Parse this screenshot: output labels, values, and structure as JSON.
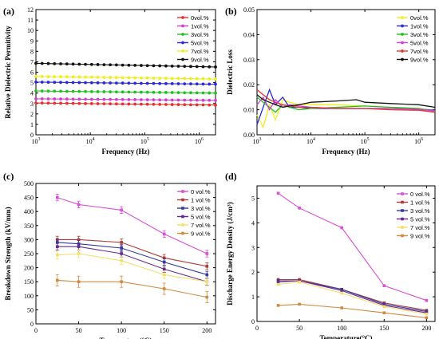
{
  "colors": {
    "c0": "#e83030",
    "c1": "#d33fd3",
    "c3": "#1fc21f",
    "c5": "#2a2ad8",
    "c7": "#f0ee20",
    "c9": "#111111",
    "cc0": "#d94fd9",
    "cc1": "#b03a3a",
    "cc3": "#2f3aa0",
    "cc5": "#6a2a8a",
    "cc7": "#f3e06a",
    "cc9": "#d08a40"
  },
  "chart_data": [
    {
      "panel": "(a)",
      "type": "line",
      "xscale": "log",
      "xlim": [
        1000,
        2000000
      ],
      "ylim": [
        0,
        12
      ],
      "xlabel": "Frequency (Hz)",
      "ylabel": "Relative Dielectric Permitivity",
      "xticks": [
        {
          "v": 1000,
          "b": "10",
          "e": "3"
        },
        {
          "v": 10000,
          "b": "10",
          "e": "4"
        },
        {
          "v": 100000,
          "b": "10",
          "e": "5"
        },
        {
          "v": 1000000,
          "b": "10",
          "e": "6"
        }
      ],
      "yticks": [
        0,
        1,
        2,
        3,
        4,
        5,
        6,
        7,
        8,
        9,
        10,
        11,
        12
      ],
      "legend_position": "top-right",
      "series": [
        {
          "name": "0vol.%",
          "color": "c0",
          "values": [
            3.05,
            2.85
          ]
        },
        {
          "name": "1vol.%",
          "color": "c1",
          "values": [
            3.45,
            3.3
          ]
        },
        {
          "name": "3vol.%",
          "color": "c3",
          "values": [
            4.2,
            4.0
          ]
        },
        {
          "name": "5vol.%",
          "color": "c5",
          "values": [
            5.05,
            4.85
          ]
        },
        {
          "name": "7vol.%",
          "color": "c7",
          "values": [
            5.6,
            5.35
          ]
        },
        {
          "name": "9vol.%",
          "color": "c9",
          "values": [
            6.85,
            6.5
          ]
        }
      ]
    },
    {
      "panel": "(b)",
      "type": "line",
      "xscale": "log",
      "xlim": [
        1000,
        2000000
      ],
      "ylim": [
        0,
        0.05
      ],
      "xlabel": "Frequency (Hz)",
      "ylabel": "Dielectric Loss",
      "xticks": [
        {
          "v": 1000,
          "b": "10",
          "e": "3"
        },
        {
          "v": 10000,
          "b": "10",
          "e": "4"
        },
        {
          "v": 100000,
          "b": "10",
          "e": "5"
        },
        {
          "v": 1000000,
          "b": "10",
          "e": "6"
        }
      ],
      "yticks": [
        "0.00",
        "0.01",
        "0.02",
        "0.03",
        "0.04",
        "0.05"
      ],
      "legend_position": "top-right",
      "series": [
        {
          "name": "0vol.%",
          "color": "c7",
          "x": [
            1000,
            1300,
            1700,
            2200,
            3000,
            4000,
            6000,
            10000,
            30000,
            100000,
            300000,
            1000000,
            2000000
          ],
          "values": [
            0.008,
            0.003,
            0.012,
            0.006,
            0.014,
            0.013,
            0.012,
            0.012,
            0.012,
            0.0115,
            0.011,
            0.0105,
            0.0095
          ]
        },
        {
          "name": "1vol.%",
          "color": "c5",
          "x": [
            1000,
            1300,
            1700,
            2200,
            3000,
            4000,
            6000,
            10000,
            30000,
            100000,
            300000,
            1000000,
            2000000
          ],
          "values": [
            0.004,
            0.011,
            0.018,
            0.012,
            0.015,
            0.011,
            0.011,
            0.0105,
            0.0105,
            0.0105,
            0.0105,
            0.0103,
            0.0098
          ]
        },
        {
          "name": "3vol.%",
          "color": "c3",
          "x": [
            1000,
            1300,
            1700,
            2200,
            3000,
            4000,
            6000,
            10000,
            30000,
            100000,
            300000,
            1000000,
            2000000
          ],
          "values": [
            0.015,
            0.013,
            0.011,
            0.009,
            0.012,
            0.011,
            0.01,
            0.0105,
            0.011,
            0.0115,
            0.011,
            0.0105,
            0.0095
          ]
        },
        {
          "name": "5vol.%",
          "color": "c1",
          "x": [
            1000,
            1300,
            1700,
            2200,
            3000,
            4000,
            6000,
            10000,
            30000,
            100000,
            300000,
            1000000,
            2000000
          ],
          "values": [
            0.012,
            0.015,
            0.01,
            0.014,
            0.011,
            0.012,
            0.0115,
            0.011,
            0.0105,
            0.0105,
            0.0105,
            0.0102,
            0.0095
          ]
        },
        {
          "name": "7vol.%",
          "color": "c0",
          "x": [
            1000,
            1300,
            1700,
            2200,
            3000,
            4000,
            6000,
            10000,
            30000,
            100000,
            300000,
            1000000,
            2000000
          ],
          "values": [
            0.018,
            0.016,
            0.014,
            0.013,
            0.012,
            0.0115,
            0.011,
            0.011,
            0.0105,
            0.0105,
            0.01,
            0.0098,
            0.009
          ]
        },
        {
          "name": "9vol.%",
          "color": "c9",
          "x": [
            1000,
            1300,
            1700,
            2200,
            3000,
            4000,
            6000,
            10000,
            30000,
            70000,
            100000,
            300000,
            1000000,
            2000000
          ],
          "values": [
            0.016,
            0.014,
            0.013,
            0.012,
            0.011,
            0.0115,
            0.012,
            0.013,
            0.0135,
            0.014,
            0.013,
            0.0125,
            0.012,
            0.011
          ]
        }
      ]
    },
    {
      "panel": "(c)",
      "type": "line",
      "xlim": [
        0,
        210
      ],
      "ylim": [
        0,
        500
      ],
      "xlabel": "Temperature(°C)",
      "ylabel": "Breakdown Strength (kV/mm)",
      "xticks": [
        0,
        50,
        100,
        150,
        200
      ],
      "yticks": [
        0,
        50,
        100,
        150,
        200,
        250,
        300,
        350,
        400,
        450,
        500
      ],
      "legend_position": "top-right",
      "x": [
        25,
        50,
        100,
        150,
        200
      ],
      "series": [
        {
          "name": "0 vol.%",
          "color": "cc0",
          "values": [
            450,
            425,
            405,
            320,
            250
          ],
          "err": 12
        },
        {
          "name": "1 vol.%",
          "color": "cc1",
          "values": [
            300,
            300,
            290,
            235,
            205
          ],
          "err": 12
        },
        {
          "name": "3 vol.%",
          "color": "cc3",
          "values": [
            290,
            285,
            270,
            220,
            175
          ],
          "err": 12
        },
        {
          "name": "5 vol.%",
          "color": "cc5",
          "values": [
            275,
            275,
            250,
            195,
            150
          ],
          "err": 12
        },
        {
          "name": "7 vol.%",
          "color": "cc7",
          "values": [
            245,
            250,
            225,
            175,
            150
          ],
          "err": 14
        },
        {
          "name": "9 vol.%",
          "color": "cc9",
          "values": [
            155,
            150,
            150,
            125,
            95
          ],
          "err": 20
        }
      ]
    },
    {
      "panel": "(d)",
      "type": "line",
      "xlim": [
        0,
        210
      ],
      "ylim": [
        0,
        5.5
      ],
      "xlabel": "Temperature(°C)",
      "ylabel": "Discharge Energy Density (J/cm³)",
      "xticks": [
        0,
        50,
        100,
        150,
        200
      ],
      "yticks": [
        0,
        1,
        2,
        3,
        4,
        5
      ],
      "legend_position": "top-right",
      "x": [
        25,
        50,
        100,
        150,
        200
      ],
      "series": [
        {
          "name": "0 vol.%",
          "color": "cc0",
          "values": [
            5.2,
            4.6,
            3.8,
            1.45,
            0.85
          ]
        },
        {
          "name": "1 vol.%",
          "color": "cc1",
          "values": [
            1.7,
            1.7,
            1.3,
            0.75,
            0.45
          ]
        },
        {
          "name": "3 vol.%",
          "color": "cc3",
          "values": [
            1.65,
            1.65,
            1.3,
            0.7,
            0.4
          ]
        },
        {
          "name": "5 vol.%",
          "color": "cc5",
          "values": [
            1.6,
            1.65,
            1.25,
            0.65,
            0.35
          ]
        },
        {
          "name": "7 vol.%",
          "color": "cc7",
          "values": [
            1.5,
            1.6,
            1.15,
            0.6,
            0.3
          ]
        },
        {
          "name": "9 vol.%",
          "color": "cc9",
          "values": [
            0.65,
            0.7,
            0.55,
            0.35,
            0.15
          ]
        }
      ]
    }
  ]
}
